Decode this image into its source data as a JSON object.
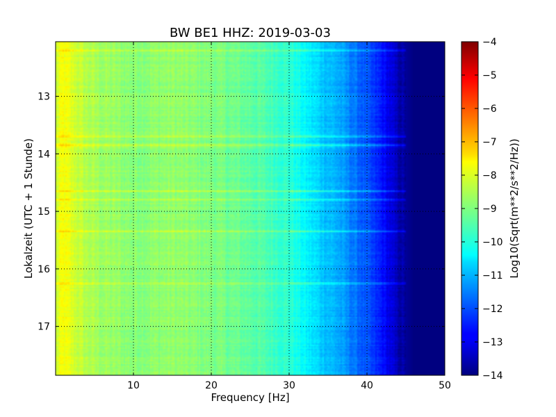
{
  "chart_data": {
    "type": "heatmap",
    "title": "BW BE1 HHZ: 2019-03-03",
    "xlabel": "Frequency [Hz]",
    "ylabel": "Lokalzeit (UTC + 1 Stunde)",
    "xlim": [
      0,
      50
    ],
    "ylim": [
      12.05,
      17.85
    ],
    "y_inverted": true,
    "x_ticks": [
      10,
      20,
      30,
      40,
      50
    ],
    "y_ticks": [
      13,
      14,
      15,
      16,
      17
    ],
    "grid": true,
    "colormap": "jet",
    "colorbar": {
      "label": "Log10(Sqrt(m**2/s**2/Hz))",
      "range": [
        -14,
        -4
      ],
      "ticks": [
        -4,
        -5,
        -6,
        -7,
        -8,
        -9,
        -10,
        -11,
        -12,
        -13,
        -14
      ]
    },
    "spectrum_profile": {
      "frequency_hz": [
        0,
        1,
        2,
        4,
        6,
        10,
        15,
        20,
        25,
        30,
        32,
        34,
        36,
        38,
        40,
        42,
        44,
        46,
        50
      ],
      "log10_psd": [
        -8.3,
        -7.8,
        -8.1,
        -8.5,
        -8.7,
        -8.9,
        -8.8,
        -9.0,
        -9.3,
        -9.8,
        -10.3,
        -10.7,
        -11.0,
        -11.5,
        -12.0,
        -12.6,
        -13.5,
        -14.0,
        -14.0
      ]
    },
    "bright_bands_hour": [
      12.2,
      13.7,
      13.85,
      14.65,
      14.8,
      15.35,
      16.25
    ]
  }
}
